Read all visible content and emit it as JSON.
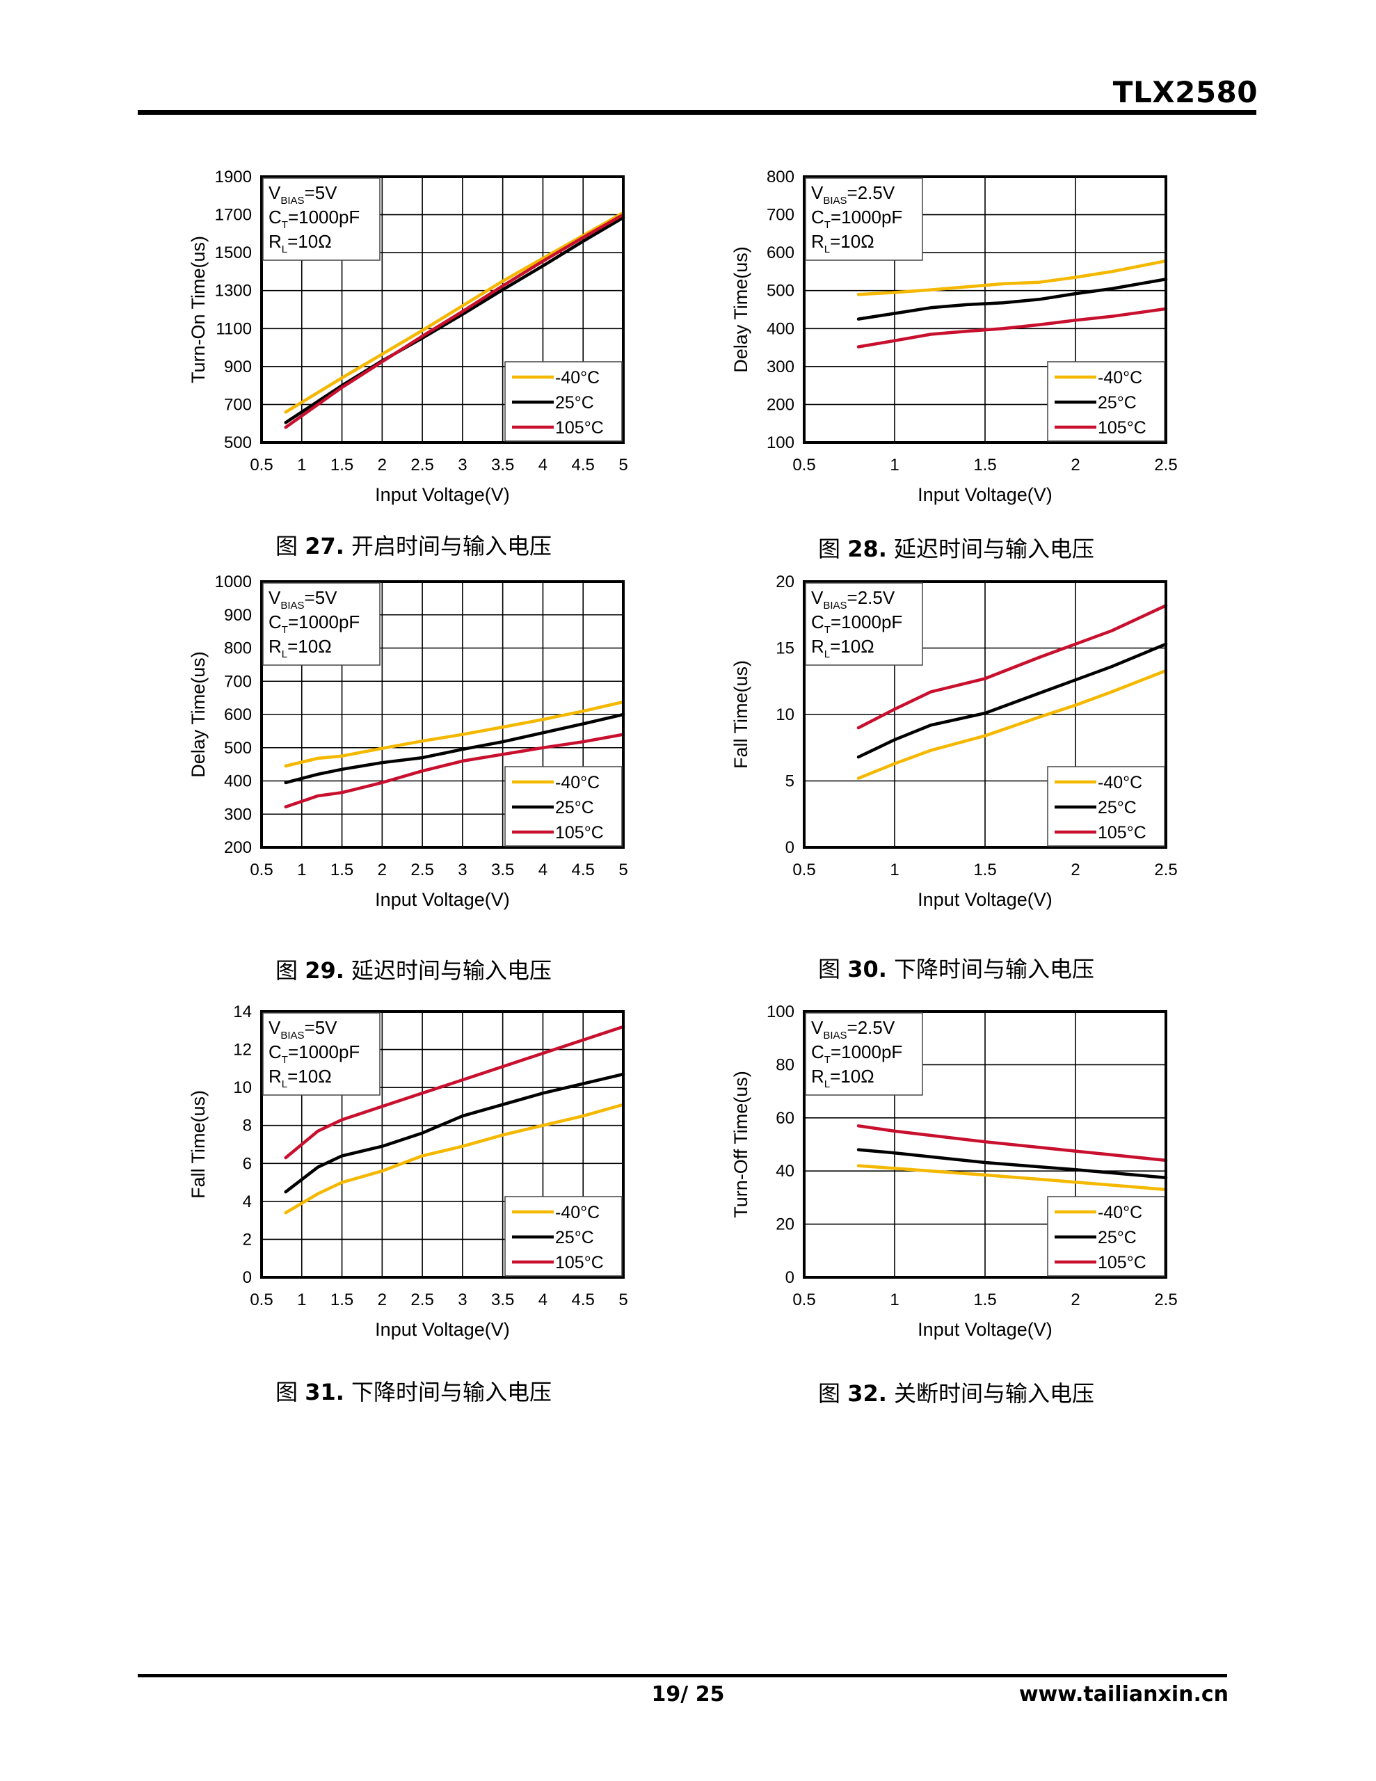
{
  "header": {
    "title": "TLX2580"
  },
  "footer": {
    "page": "19/ 25",
    "site": "www.tailianxin.cn"
  },
  "figures": [
    {
      "caption_prefix": "图",
      "caption_num": "27.",
      "caption_text": "开启时间与输入电压"
    },
    {
      "caption_prefix": "图",
      "caption_num": "28.",
      "caption_text": "延迟时间与输入电压"
    },
    {
      "caption_prefix": "图",
      "caption_num": "29.",
      "caption_text": "延迟时间与输入电压"
    },
    {
      "caption_prefix": "图",
      "caption_num": "30.",
      "caption_text": "下降时间与输入电压"
    },
    {
      "caption_prefix": "图",
      "caption_num": "31.",
      "caption_text": "下降时间与输入电压"
    },
    {
      "caption_prefix": "图",
      "caption_num": "32.",
      "caption_text": "关断时间与输入电压"
    }
  ],
  "chart_data": [
    {
      "type": "line",
      "xlabel": "Input Voltage(V)",
      "ylabel": "Turn-On Time(us)",
      "xlim": [
        0.5,
        5
      ],
      "ylim": [
        500,
        1900
      ],
      "xticks": [
        0.5,
        1,
        1.5,
        2,
        2.5,
        3,
        3.5,
        4,
        4.5,
        5
      ],
      "yticks": [
        500,
        700,
        900,
        1100,
        1300,
        1500,
        1700,
        1900
      ],
      "grid": true,
      "legend_position": "bottom-right",
      "conditions": [
        {
          "main": "V",
          "sub": "BIAS",
          "rest": "=5V"
        },
        {
          "main": "C",
          "sub": "T",
          "rest": "=1000pF"
        },
        {
          "main": "R",
          "sub": "L",
          "rest": "=10Ω"
        }
      ],
      "series": [
        {
          "name": "-40°C",
          "color": "#F5B800",
          "x": [
            0.8,
            1.5,
            2,
            2.5,
            3,
            3.5,
            4,
            4.5,
            5
          ],
          "y": [
            660,
            840,
            965,
            1090,
            1220,
            1350,
            1470,
            1590,
            1710
          ]
        },
        {
          "name": "25°C",
          "color": "#000000",
          "x": [
            0.8,
            1.5,
            2,
            2.5,
            3,
            3.5,
            4,
            4.5,
            5
          ],
          "y": [
            605,
            800,
            930,
            1050,
            1175,
            1305,
            1430,
            1560,
            1685
          ]
        },
        {
          "name": "105°C",
          "color": "#C8102E",
          "x": [
            0.8,
            1.5,
            2,
            2.5,
            3,
            3.5,
            4,
            4.5,
            5
          ],
          "y": [
            580,
            790,
            925,
            1060,
            1190,
            1325,
            1455,
            1580,
            1700
          ]
        }
      ]
    },
    {
      "type": "line",
      "xlabel": "Input Voltage(V)",
      "ylabel": "Delay Time(us)",
      "xlim": [
        0.5,
        2.5
      ],
      "ylim": [
        100,
        800
      ],
      "xticks": [
        0.5,
        1,
        1.5,
        2,
        2.5
      ],
      "yticks": [
        100,
        200,
        300,
        400,
        500,
        600,
        700,
        800
      ],
      "grid": true,
      "legend_position": "bottom-right",
      "conditions": [
        {
          "main": "V",
          "sub": "BIAS",
          "rest": "=2.5V"
        },
        {
          "main": "C",
          "sub": "T",
          "rest": "=1000pF"
        },
        {
          "main": "R",
          "sub": "L",
          "rest": "=10Ω"
        }
      ],
      "series": [
        {
          "name": "-40°C",
          "color": "#F5B800",
          "x": [
            0.8,
            1,
            1.2,
            1.4,
            1.6,
            1.8,
            2,
            2.2,
            2.5
          ],
          "y": [
            490,
            495,
            502,
            510,
            518,
            522,
            535,
            550,
            578
          ]
        },
        {
          "name": "25°C",
          "color": "#000000",
          "x": [
            0.8,
            1,
            1.2,
            1.4,
            1.6,
            1.8,
            2,
            2.2,
            2.5
          ],
          "y": [
            425,
            440,
            455,
            463,
            468,
            477,
            492,
            505,
            530
          ]
        },
        {
          "name": "105°C",
          "color": "#C8102E",
          "x": [
            0.8,
            1,
            1.2,
            1.4,
            1.6,
            1.8,
            2,
            2.2,
            2.5
          ],
          "y": [
            352,
            368,
            385,
            393,
            400,
            410,
            422,
            432,
            452
          ]
        }
      ]
    },
    {
      "type": "line",
      "xlabel": "Input Voltage(V)",
      "ylabel": "Delay Time(us)",
      "xlim": [
        0.5,
        5
      ],
      "ylim": [
        200,
        1000
      ],
      "xticks": [
        0.5,
        1,
        1.5,
        2,
        2.5,
        3,
        3.5,
        4,
        4.5,
        5
      ],
      "yticks": [
        200,
        300,
        400,
        500,
        600,
        700,
        800,
        900,
        1000
      ],
      "grid": true,
      "legend_position": "bottom-right",
      "conditions": [
        {
          "main": "V",
          "sub": "BIAS",
          "rest": "=5V"
        },
        {
          "main": "C",
          "sub": "T",
          "rest": "=1000pF"
        },
        {
          "main": "R",
          "sub": "L",
          "rest": "=10Ω"
        }
      ],
      "series": [
        {
          "name": "-40°C",
          "color": "#F5B800",
          "x": [
            0.8,
            1.2,
            1.5,
            2,
            2.5,
            3,
            3.5,
            4,
            4.5,
            5
          ],
          "y": [
            445,
            468,
            475,
            498,
            520,
            540,
            562,
            585,
            610,
            638
          ]
        },
        {
          "name": "25°C",
          "color": "#000000",
          "x": [
            0.8,
            1.2,
            1.5,
            2,
            2.5,
            3,
            3.5,
            4,
            4.5,
            5
          ],
          "y": [
            395,
            420,
            435,
            455,
            470,
            495,
            518,
            545,
            572,
            600
          ]
        },
        {
          "name": "105°C",
          "color": "#C8102E",
          "x": [
            0.8,
            1.2,
            1.5,
            2,
            2.5,
            3,
            3.5,
            4,
            4.5,
            5
          ],
          "y": [
            322,
            355,
            365,
            395,
            430,
            460,
            480,
            500,
            518,
            540
          ]
        }
      ]
    },
    {
      "type": "line",
      "xlabel": "Input Voltage(V)",
      "ylabel": "Fall Time(us)",
      "xlim": [
        0.5,
        2.5
      ],
      "ylim": [
        0,
        20
      ],
      "xticks": [
        0.5,
        1,
        1.5,
        2,
        2.5
      ],
      "yticks": [
        0,
        5,
        10,
        15,
        20
      ],
      "grid": true,
      "legend_position": "bottom-right",
      "conditions": [
        {
          "main": "V",
          "sub": "BIAS",
          "rest": "=2.5V"
        },
        {
          "main": "C",
          "sub": "T",
          "rest": "=1000pF"
        },
        {
          "main": "R",
          "sub": "L",
          "rest": "=10Ω"
        }
      ],
      "series": [
        {
          "name": "-40°C",
          "color": "#F5B800",
          "x": [
            0.8,
            1,
            1.2,
            1.5,
            1.8,
            2,
            2.2,
            2.5
          ],
          "y": [
            5.2,
            6.3,
            7.3,
            8.4,
            9.8,
            10.7,
            11.7,
            13.3
          ]
        },
        {
          "name": "25°C",
          "color": "#000000",
          "x": [
            0.8,
            1,
            1.2,
            1.5,
            1.8,
            2,
            2.2,
            2.5
          ],
          "y": [
            6.8,
            8.1,
            9.2,
            10.1,
            11.6,
            12.6,
            13.6,
            15.3
          ]
        },
        {
          "name": "105°C",
          "color": "#C8102E",
          "x": [
            0.8,
            1,
            1.2,
            1.5,
            1.8,
            2,
            2.2,
            2.5
          ],
          "y": [
            9.0,
            10.4,
            11.7,
            12.7,
            14.3,
            15.3,
            16.3,
            18.2
          ]
        }
      ]
    },
    {
      "type": "line",
      "xlabel": "Input Voltage(V)",
      "ylabel": "Fall Time(us)",
      "xlim": [
        0.5,
        5
      ],
      "ylim": [
        0,
        14
      ],
      "xticks": [
        0.5,
        1,
        1.5,
        2,
        2.5,
        3,
        3.5,
        4,
        4.5,
        5
      ],
      "yticks": [
        0,
        2,
        4,
        6,
        8,
        10,
        12,
        14
      ],
      "grid": true,
      "legend_position": "bottom-right",
      "conditions": [
        {
          "main": "V",
          "sub": "BIAS",
          "rest": "=5V"
        },
        {
          "main": "C",
          "sub": "T",
          "rest": "=1000pF"
        },
        {
          "main": "R",
          "sub": "L",
          "rest": "=10Ω"
        }
      ],
      "series": [
        {
          "name": "-40°C",
          "color": "#F5B800",
          "x": [
            0.8,
            1.2,
            1.5,
            2,
            2.5,
            3,
            3.5,
            4,
            4.5,
            5
          ],
          "y": [
            3.4,
            4.4,
            5.0,
            5.6,
            6.4,
            6.9,
            7.5,
            8.0,
            8.5,
            9.1
          ]
        },
        {
          "name": "25°C",
          "color": "#000000",
          "x": [
            0.8,
            1.2,
            1.5,
            2,
            2.5,
            3,
            3.5,
            4,
            4.5,
            5
          ],
          "y": [
            4.5,
            5.8,
            6.4,
            6.9,
            7.6,
            8.5,
            9.1,
            9.7,
            10.2,
            10.7
          ]
        },
        {
          "name": "105°C",
          "color": "#C8102E",
          "x": [
            0.8,
            1.2,
            1.5,
            2,
            2.5,
            3,
            3.5,
            4,
            4.5,
            5
          ],
          "y": [
            6.3,
            7.7,
            8.3,
            9.0,
            9.7,
            10.4,
            11.1,
            11.8,
            12.5,
            13.2
          ]
        }
      ]
    },
    {
      "type": "line",
      "xlabel": "Input Voltage(V)",
      "ylabel": "Turn-Off Time(us)",
      "xlim": [
        0.5,
        2.5
      ],
      "ylim": [
        0,
        100
      ],
      "xticks": [
        0.5,
        1,
        1.5,
        2,
        2.5
      ],
      "yticks": [
        0,
        20,
        40,
        60,
        80,
        100
      ],
      "grid": true,
      "legend_position": "bottom-right",
      "conditions": [
        {
          "main": "V",
          "sub": "BIAS",
          "rest": "=2.5V"
        },
        {
          "main": "C",
          "sub": "T",
          "rest": "=1000pF"
        },
        {
          "main": "R",
          "sub": "L",
          "rest": "=10Ω"
        }
      ],
      "series": [
        {
          "name": "-40°C",
          "color": "#F5B800",
          "x": [
            0.8,
            1,
            1.5,
            2,
            2.5
          ],
          "y": [
            42,
            41,
            38.5,
            35.8,
            33
          ]
        },
        {
          "name": "25°C",
          "color": "#000000",
          "x": [
            0.8,
            1,
            1.5,
            2,
            2.5
          ],
          "y": [
            48,
            46.8,
            43.2,
            40.5,
            37.5
          ]
        },
        {
          "name": "105°C",
          "color": "#C8102E",
          "x": [
            0.8,
            1,
            1.5,
            2,
            2.5
          ],
          "y": [
            57,
            55,
            51,
            47.5,
            44
          ]
        }
      ]
    }
  ]
}
